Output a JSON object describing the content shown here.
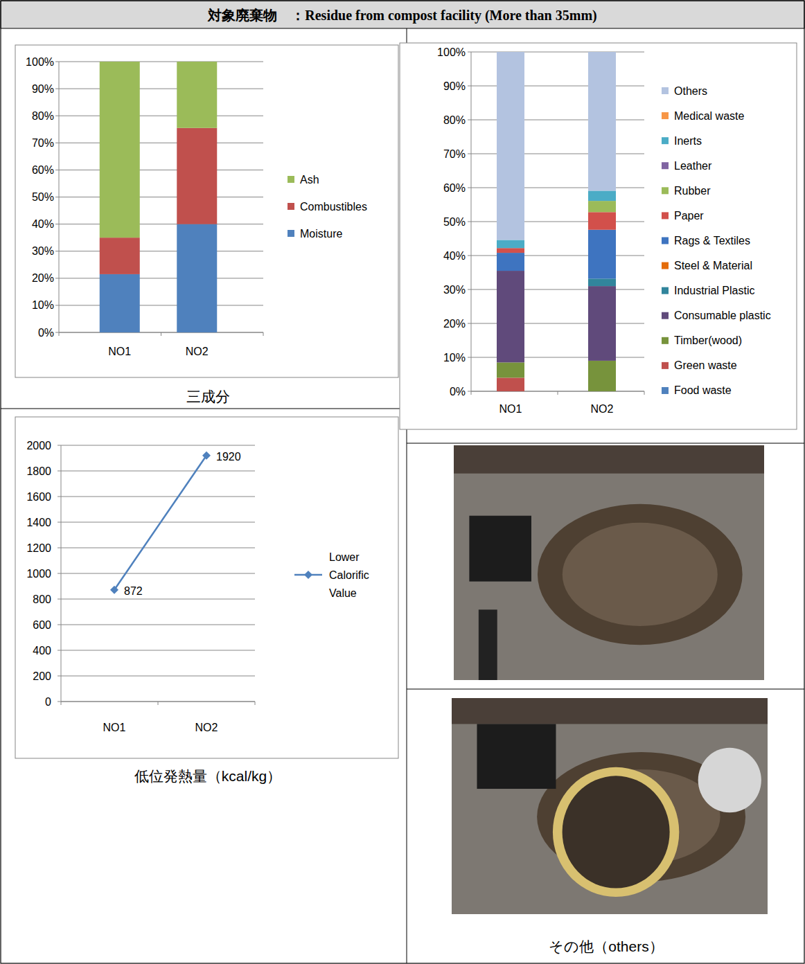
{
  "header": {
    "title": "対象廃棄物　：Residue from compost facility (More than 35mm)"
  },
  "photo_caption": "その他（others）",
  "chart_data": [
    {
      "type": "bar",
      "stacked": true,
      "title": "三成分",
      "legend": "right",
      "grid": true,
      "categories": [
        "NO1",
        "NO2"
      ],
      "ylim": [
        0,
        100
      ],
      "yticks": [
        {
          "value": 0,
          "label": "0%"
        },
        {
          "value": 10,
          "label": "10%"
        },
        {
          "value": 20,
          "label": "20%"
        },
        {
          "value": 30,
          "label": "30%"
        },
        {
          "value": 40,
          "label": "40%"
        },
        {
          "value": 50,
          "label": "50%"
        },
        {
          "value": 60,
          "label": "60%"
        },
        {
          "value": 70,
          "label": "70%"
        },
        {
          "value": 80,
          "label": "80%"
        },
        {
          "value": 90,
          "label": "90%"
        },
        {
          "value": 100,
          "label": "100%"
        }
      ],
      "series": [
        {
          "name": "Moisture",
          "color": "#4f81bd",
          "values": [
            21.5,
            40
          ]
        },
        {
          "name": "Combustibles",
          "color": "#c0504d",
          "values": [
            13.5,
            35.5
          ]
        },
        {
          "name": "Ash",
          "color": "#9bbb59",
          "values": [
            65,
            24.5
          ]
        }
      ]
    },
    {
      "type": "bar",
      "stacked": true,
      "legend": "right",
      "grid": true,
      "categories": [
        "NO1",
        "NO2"
      ],
      "ylim": [
        0,
        100
      ],
      "yticks": [
        {
          "value": 0,
          "label": "0%"
        },
        {
          "value": 10,
          "label": "10%"
        },
        {
          "value": 20,
          "label": "20%"
        },
        {
          "value": 30,
          "label": "30%"
        },
        {
          "value": 40,
          "label": "40%"
        },
        {
          "value": 50,
          "label": "50%"
        },
        {
          "value": 60,
          "label": "60%"
        },
        {
          "value": 70,
          "label": "70%"
        },
        {
          "value": 80,
          "label": "80%"
        },
        {
          "value": 90,
          "label": "90%"
        },
        {
          "value": 100,
          "label": "100%"
        }
      ],
      "series": [
        {
          "name": "Food waste",
          "color": "#4f81bd",
          "values": [
            0,
            0
          ]
        },
        {
          "name": "Green waste",
          "color": "#c0504d",
          "values": [
            4,
            0
          ]
        },
        {
          "name": "Timber(wood)",
          "color": "#77933c",
          "values": [
            4.5,
            9
          ]
        },
        {
          "name": "Consumable plastic",
          "color": "#604a7b",
          "values": [
            27,
            22
          ]
        },
        {
          "name": "Industrial Plastic",
          "color": "#31859c",
          "values": [
            0,
            2.2
          ]
        },
        {
          "name": "Steel & Material",
          "color": "#e46c0a",
          "values": [
            0,
            0
          ]
        },
        {
          "name": "Rags & Textiles",
          "color": "#3e74c0",
          "values": [
            5.3,
            14.4
          ]
        },
        {
          "name": "Paper",
          "color": "#d2504b",
          "values": [
            1.4,
            5.2
          ]
        },
        {
          "name": "Rubber",
          "color": "#9bbb59",
          "values": [
            0,
            3.3
          ]
        },
        {
          "name": "Leather",
          "color": "#8064a2",
          "values": [
            0,
            0
          ]
        },
        {
          "name": "Inerts",
          "color": "#4bacc6",
          "values": [
            2.4,
            3
          ]
        },
        {
          "name": "Medical waste",
          "color": "#f79646",
          "values": [
            0,
            0
          ]
        },
        {
          "name": "Others",
          "color": "#b3c3e0",
          "values": [
            55.4,
            40.9
          ]
        }
      ]
    },
    {
      "type": "line",
      "title": "低位発熱量（kcal/kg）",
      "legend": "right",
      "grid": true,
      "data_labels": true,
      "categories": [
        "NO1",
        "NO2"
      ],
      "ylim": [
        0,
        2000
      ],
      "yticks": [
        0,
        200,
        400,
        600,
        800,
        1000,
        1200,
        1400,
        1600,
        1800,
        2000
      ],
      "series": [
        {
          "name": "Lower Calorific Value",
          "color": "#4f81bd",
          "marker": "diamond",
          "values": [
            872,
            1920
          ]
        }
      ]
    }
  ]
}
